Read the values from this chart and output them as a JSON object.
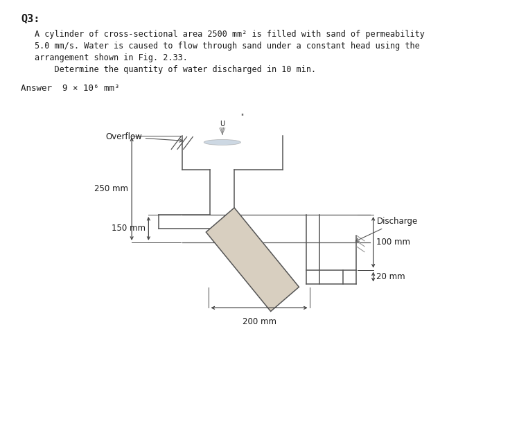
{
  "title": "Q3:",
  "body_text": [
    "A cylinder of cross-sectional area 2500 mm² is filled with sand of permeability",
    "5.0 mm/s. Water is caused to flow through sand under a constant head using the",
    "arrangement shown in Fig. 2.33.",
    "    Determine the quantity of water discharged in 10 min."
  ],
  "answer_text": "Answer  9 × 10⁶ mm³",
  "bg_color": "#ffffff",
  "text_color": "#1a1a1a",
  "line_color": "#555555",
  "sand_color": "#d8cfc0",
  "dim_color": "#444444",
  "labels": {
    "overflow": "Overflow",
    "discharge": "Discharge",
    "dim_250": "250 mm",
    "dim_150": "150 mm",
    "dim_200": "200 mm",
    "dim_100": "100 mm",
    "dim_20": "20 mm"
  }
}
